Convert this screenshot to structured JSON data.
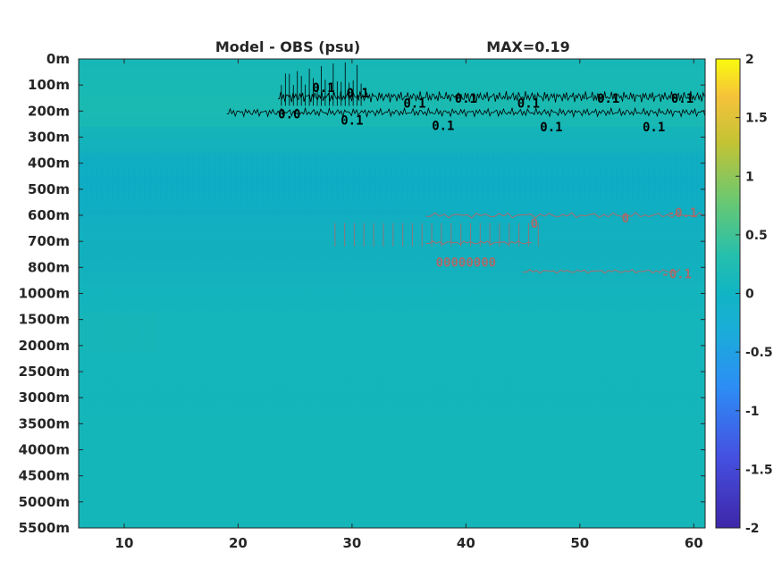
{
  "chart_data": {
    "type": "heatmap",
    "title": "Model - OBS (psu)",
    "annotation": "MAX=0.19",
    "x_ticks": [
      10,
      20,
      30,
      40,
      50,
      60
    ],
    "xlim": [
      6,
      61
    ],
    "y_ticks": [
      "0m",
      "100m",
      "200m",
      "300m",
      "400m",
      "500m",
      "600m",
      "700m",
      "800m",
      "1000m",
      "1500m",
      "2000m",
      "2500m",
      "3000m",
      "3500m",
      "4000m",
      "4500m",
      "5000m",
      "5500m"
    ],
    "clim": [
      -2,
      2
    ],
    "colorbar_ticks": [
      "2",
      "1.5",
      "1",
      "0.5",
      "0",
      "-0.5",
      "-1",
      "-1.5",
      "-2"
    ],
    "contours": [
      {
        "level": 0.1,
        "color": "#000000",
        "labels": [
          {
            "text": "0.1",
            "x": 27.5,
            "y_index": 1.1
          },
          {
            "text": "0.1",
            "x": 30.5,
            "y_index": 1.3
          },
          {
            "text": "0.1",
            "x": 35.5,
            "y_index": 1.7
          },
          {
            "text": "0.1",
            "x": 40.0,
            "y_index": 1.5
          },
          {
            "text": "0.1",
            "x": 45.5,
            "y_index": 1.7
          },
          {
            "text": "0.1",
            "x": 52.5,
            "y_index": 1.5
          },
          {
            "text": "0.1",
            "x": 59.0,
            "y_index": 1.5
          },
          {
            "text": "0.0",
            "x": 24.5,
            "y_index": 2.1
          },
          {
            "text": "0.1",
            "x": 30.0,
            "y_index": 2.35
          },
          {
            "text": "0.1",
            "x": 38.0,
            "y_index": 2.55
          },
          {
            "text": "0.1",
            "x": 47.5,
            "y_index": 2.6
          },
          {
            "text": "0.1",
            "x": 56.5,
            "y_index": 2.6
          }
        ]
      },
      {
        "level": -0.1,
        "color": "#a86a6a",
        "labels": [
          {
            "text": "0",
            "x": 46.0,
            "y_index": 6.3
          },
          {
            "text": "0",
            "x": 54.0,
            "y_index": 6.1
          },
          {
            "text": "-0.1",
            "x": 59.0,
            "y_index": 5.9
          },
          {
            "text": "00000000",
            "x": 40.0,
            "y_index": 7.8
          },
          {
            "text": "-0.1",
            "x": 58.5,
            "y_index": 8.25
          }
        ]
      }
    ]
  }
}
